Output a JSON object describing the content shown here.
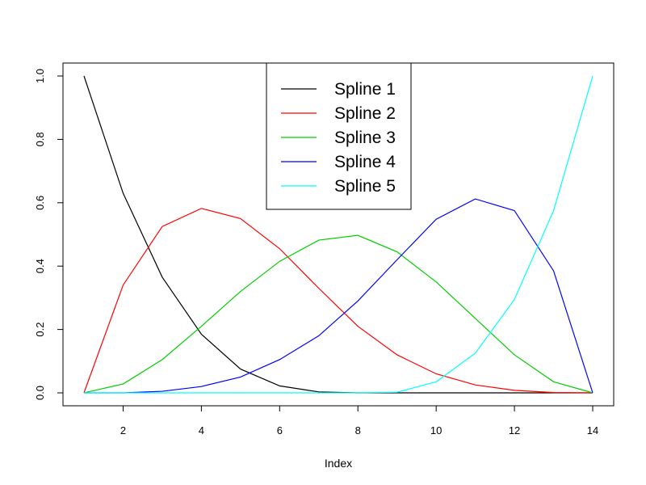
{
  "chart_data": {
    "type": "line",
    "title": "",
    "xlabel": "Index",
    "ylabel": "",
    "xlim": [
      1,
      14
    ],
    "ylim": [
      0,
      1
    ],
    "xticks": [
      2,
      4,
      6,
      8,
      10,
      12,
      14
    ],
    "yticks": [
      0.0,
      0.2,
      0.4,
      0.6,
      0.8,
      1.0
    ],
    "ytick_labels": [
      "0.0",
      "0.2",
      "0.4",
      "0.6",
      "0.8",
      "1.0"
    ],
    "grid": false,
    "legend_position": "top-center",
    "x": [
      1,
      2,
      3,
      4,
      5,
      6,
      7,
      8,
      9,
      10,
      11,
      12,
      13,
      14
    ],
    "series": [
      {
        "name": "Spline 1",
        "color": "#000000",
        "values": [
          1.0,
          0.63,
          0.365,
          0.185,
          0.075,
          0.022,
          0.003,
          0.0,
          0.0,
          0.0,
          0.0,
          0.0,
          0.0,
          0.0
        ]
      },
      {
        "name": "Spline 2",
        "color": "#ff0000",
        "values": [
          0.0,
          0.34,
          0.525,
          0.582,
          0.55,
          0.455,
          0.33,
          0.21,
          0.12,
          0.06,
          0.025,
          0.008,
          0.001,
          0.0
        ]
      },
      {
        "name": "Spline 3",
        "color": "#00cd00",
        "values": [
          0.0,
          0.028,
          0.105,
          0.21,
          0.32,
          0.415,
          0.482,
          0.497,
          0.445,
          0.35,
          0.235,
          0.12,
          0.035,
          0.0
        ]
      },
      {
        "name": "Spline 4",
        "color": "#0000ff",
        "values": [
          0.0,
          0.0,
          0.005,
          0.02,
          0.05,
          0.105,
          0.18,
          0.29,
          0.42,
          0.548,
          0.612,
          0.575,
          0.385,
          0.0
        ]
      },
      {
        "name": "Spline 5",
        "color": "#00ffff",
        "values": [
          0.0,
          0.0,
          0.0,
          0.0,
          0.0,
          0.0,
          0.0,
          0.0,
          0.002,
          0.035,
          0.125,
          0.295,
          0.575,
          1.0
        ]
      }
    ]
  }
}
